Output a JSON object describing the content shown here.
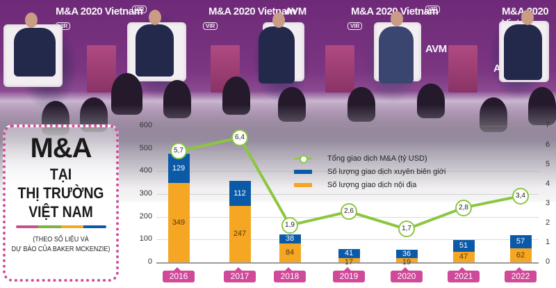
{
  "title": {
    "main": "M&A",
    "line1": "TẠI",
    "line2": "THỊ TRƯỜNG",
    "line3": "VIỆT NAM",
    "source_line1": "(THEO SỐ LIỆU VÀ",
    "source_line2": "DỰ BÁO CỦA BAKER MCKENZIE)",
    "divider_colors": [
      "#c8508f",
      "#7cb342",
      "#f5a623",
      "#0a5aa8"
    ]
  },
  "photo": {
    "signage": [
      "AVM",
      "M&A 2020 Vietnam",
      "VIR"
    ]
  },
  "legend": {
    "line": "Tổng giao dịch M&A (tỷ USD)",
    "blue": "Số lượng giao dịch xuyên biên giới",
    "orange": "Số lượng giao dịch nội địa"
  },
  "colors": {
    "blue": "#0a5aa8",
    "orange": "#f5a623",
    "line": "#8cc63f",
    "year_tag": "#d04a9a",
    "title_border": "#d04a9a"
  },
  "axes": {
    "left_ticks": [
      "0",
      "100",
      "200",
      "300",
      "400",
      "500",
      "600"
    ],
    "right_ticks": [
      "0",
      "1",
      "2",
      "3",
      "4",
      "5",
      "6",
      "7"
    ]
  },
  "chart_data": {
    "type": "bar",
    "title": "M&A tại thị trường Việt Nam",
    "subtitle": "(Theo số liệu và dự báo của Baker McKenzie)",
    "categories": [
      "2016",
      "2017",
      "2018",
      "2019",
      "2020",
      "2021",
      "2022"
    ],
    "series": [
      {
        "name": "Số lượng giao dịch nội địa",
        "type": "bar",
        "stack": "deals",
        "color": "#f5a623",
        "axis": "left",
        "values": [
          349,
          247,
          84,
          17,
          19,
          47,
          62
        ]
      },
      {
        "name": "Số lượng giao dịch xuyên biên giới",
        "type": "bar",
        "stack": "deals",
        "color": "#0a5aa8",
        "axis": "left",
        "values": [
          129,
          112,
          38,
          41,
          36,
          51,
          57
        ]
      },
      {
        "name": "Tổng giao dịch M&A (tỷ USD)",
        "type": "line",
        "color": "#8cc63f",
        "axis": "right",
        "values": [
          5.7,
          6.4,
          1.9,
          2.6,
          1.7,
          2.8,
          3.4
        ],
        "labels": [
          "5,7",
          "6,4",
          "1,9",
          "2,6",
          "1,7",
          "2,8",
          "3,4"
        ]
      }
    ],
    "xlabel": "",
    "ylabel_left": "Số lượng giao dịch",
    "ylabel_right": "tỷ USD",
    "ylim_left": [
      0,
      600
    ],
    "ylim_right": [
      0,
      7
    ],
    "grid": true,
    "legend_position": "top-center"
  },
  "bars": [
    {
      "year": "2016",
      "orange": "349",
      "blue": "129",
      "total_label": "5,7"
    },
    {
      "year": "2017",
      "orange": "247",
      "blue": "112",
      "total_label": "6,4"
    },
    {
      "year": "2018",
      "orange": "84",
      "blue": "38",
      "total_label": "1,9"
    },
    {
      "year": "2019",
      "orange": "17",
      "blue": "41",
      "total_label": "2,6"
    },
    {
      "year": "2020",
      "orange": "19",
      "blue": "36",
      "total_label": "1,7"
    },
    {
      "year": "2021",
      "orange": "47",
      "blue": "51",
      "total_label": "2,8"
    },
    {
      "year": "2022",
      "orange": "62",
      "blue": "57",
      "total_label": "3,4"
    }
  ]
}
